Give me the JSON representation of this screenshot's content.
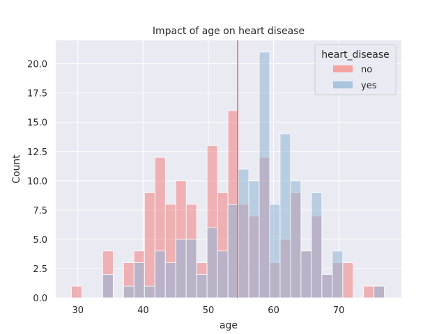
{
  "chart_data": {
    "type": "bar",
    "subtype": "histogram",
    "title": "Impact of age on heart disease",
    "xlabel": "age",
    "ylabel": "Count",
    "xlim": [
      26.6,
      79.6
    ],
    "ylim": [
      0,
      22
    ],
    "xticks": [
      30,
      40,
      50,
      60,
      70
    ],
    "yticks": [
      0.0,
      2.5,
      5.0,
      7.5,
      10.0,
      12.5,
      15.0,
      17.5,
      20.0
    ],
    "ytick_labels": [
      "0.0",
      "2.5",
      "5.0",
      "7.5",
      "10.0",
      "12.5",
      "15.0",
      "17.5",
      "20.0"
    ],
    "grid": true,
    "bin_start": 29,
    "bin_width": 1.6,
    "bin_count": 30,
    "legend": {
      "title": "heart_disease",
      "position": "top-right",
      "entries": [
        {
          "label": "no",
          "color": "#f4a3a0"
        },
        {
          "label": "yes",
          "color": "#a9c4de"
        }
      ]
    },
    "series": [
      {
        "name": "no",
        "color": "#f08080",
        "values": [
          1,
          0,
          0,
          4,
          0,
          3,
          4,
          9,
          12,
          8,
          10,
          8,
          3,
          13,
          9,
          16,
          8,
          7,
          12,
          3,
          5,
          9,
          4,
          7,
          2,
          3,
          3,
          0,
          1,
          1
        ]
      },
      {
        "name": "yes",
        "color": "#8fb4d6",
        "values": [
          0,
          0,
          0,
          2,
          0,
          1,
          3,
          1,
          4,
          3,
          5,
          5,
          2,
          6,
          4,
          8,
          11,
          10,
          21,
          8,
          14,
          10,
          4,
          9,
          2,
          4,
          0,
          0,
          0,
          1
        ]
      }
    ],
    "mean_line": {
      "x": 54.5,
      "color": "#f05a5a"
    }
  },
  "colors": {
    "plot_background": "#eaeaf2",
    "grid": "#ffffff",
    "overlap_tint": "#d4a6ad"
  }
}
